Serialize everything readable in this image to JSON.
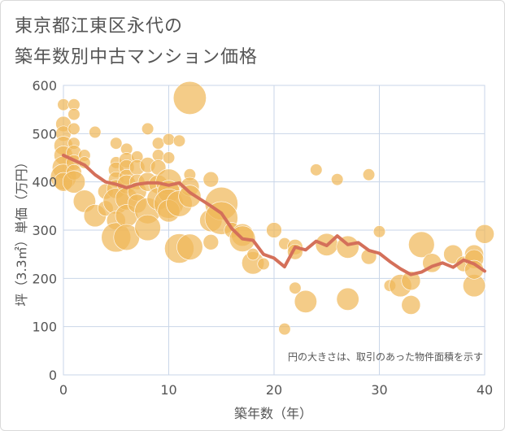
{
  "chart_data": {
    "type": "scatter",
    "title_lines": [
      "東京都江東区永代の",
      "築年数別中古マンション価格"
    ],
    "xlabel": "築年数（年）",
    "ylabel": "坪（3.3㎡）単価（万円）",
    "note": "円の大きさは、取引のあった物件面積を示す",
    "xlim": [
      0,
      40
    ],
    "ylim": [
      0,
      600
    ],
    "x_ticks": [
      0,
      10,
      20,
      30,
      40
    ],
    "y_ticks": [
      0,
      100,
      200,
      300,
      400,
      500,
      600
    ],
    "grid": true,
    "colors": {
      "bubble": "#f0b95a",
      "line": "#d4705a",
      "grid": "#c9d6e8",
      "axis_text": "#555555"
    },
    "trend_line": {
      "x": [
        0,
        1,
        2,
        3,
        4,
        5,
        6,
        7,
        8,
        9,
        10,
        11,
        12,
        13,
        14,
        15,
        16,
        17,
        18,
        19,
        20,
        21,
        22,
        23,
        24,
        25,
        26,
        27,
        28,
        29,
        30,
        31,
        32,
        33,
        34,
        35,
        36,
        37,
        38,
        39,
        40
      ],
      "y": [
        455,
        445,
        435,
        415,
        400,
        395,
        388,
        395,
        398,
        398,
        393,
        398,
        378,
        364,
        350,
        335,
        303,
        282,
        279,
        250,
        242,
        224,
        265,
        259,
        277,
        268,
        288,
        270,
        274,
        258,
        252,
        235,
        220,
        208,
        213,
        225,
        232,
        223,
        238,
        230,
        215
      ]
    },
    "bubbles": [
      {
        "x": 0,
        "y": 560,
        "s": 2
      },
      {
        "x": 0,
        "y": 520,
        "s": 3
      },
      {
        "x": 0,
        "y": 500,
        "s": 3
      },
      {
        "x": 0,
        "y": 475,
        "s": 4
      },
      {
        "x": 0,
        "y": 455,
        "s": 4
      },
      {
        "x": 0,
        "y": 430,
        "s": 5
      },
      {
        "x": 0,
        "y": 410,
        "s": 6
      },
      {
        "x": 0,
        "y": 400,
        "s": 4
      },
      {
        "x": 1,
        "y": 560,
        "s": 2
      },
      {
        "x": 1,
        "y": 540,
        "s": 2
      },
      {
        "x": 1,
        "y": 510,
        "s": 2
      },
      {
        "x": 1,
        "y": 480,
        "s": 2
      },
      {
        "x": 1,
        "y": 460,
        "s": 3
      },
      {
        "x": 1,
        "y": 440,
        "s": 3
      },
      {
        "x": 1,
        "y": 420,
        "s": 3
      },
      {
        "x": 1,
        "y": 400,
        "s": 5
      },
      {
        "x": 2,
        "y": 455,
        "s": 2
      },
      {
        "x": 2,
        "y": 440,
        "s": 2
      },
      {
        "x": 2,
        "y": 360,
        "s": 5
      },
      {
        "x": 3,
        "y": 503,
        "s": 2
      },
      {
        "x": 3,
        "y": 330,
        "s": 5
      },
      {
        "x": 4,
        "y": 380,
        "s": 3
      },
      {
        "x": 4,
        "y": 345,
        "s": 3
      },
      {
        "x": 5,
        "y": 480,
        "s": 2
      },
      {
        "x": 5,
        "y": 440,
        "s": 2
      },
      {
        "x": 5,
        "y": 425,
        "s": 3
      },
      {
        "x": 5,
        "y": 405,
        "s": 3
      },
      {
        "x": 5,
        "y": 385,
        "s": 4
      },
      {
        "x": 5,
        "y": 360,
        "s": 6
      },
      {
        "x": 5,
        "y": 320,
        "s": 4
      },
      {
        "x": 5,
        "y": 285,
        "s": 7
      },
      {
        "x": 6,
        "y": 468,
        "s": 2
      },
      {
        "x": 6,
        "y": 445,
        "s": 3
      },
      {
        "x": 6,
        "y": 430,
        "s": 3
      },
      {
        "x": 6,
        "y": 410,
        "s": 3
      },
      {
        "x": 6,
        "y": 395,
        "s": 4
      },
      {
        "x": 6,
        "y": 365,
        "s": 5
      },
      {
        "x": 6,
        "y": 330,
        "s": 5
      },
      {
        "x": 6,
        "y": 285,
        "s": 6
      },
      {
        "x": 7,
        "y": 452,
        "s": 2
      },
      {
        "x": 7,
        "y": 430,
        "s": 3
      },
      {
        "x": 7,
        "y": 400,
        "s": 3
      },
      {
        "x": 7,
        "y": 380,
        "s": 4
      },
      {
        "x": 7,
        "y": 355,
        "s": 4
      },
      {
        "x": 8,
        "y": 510,
        "s": 2
      },
      {
        "x": 8,
        "y": 435,
        "s": 3
      },
      {
        "x": 8,
        "y": 400,
        "s": 4
      },
      {
        "x": 8,
        "y": 340,
        "s": 6
      },
      {
        "x": 8,
        "y": 305,
        "s": 6
      },
      {
        "x": 9,
        "y": 480,
        "s": 2
      },
      {
        "x": 9,
        "y": 455,
        "s": 2
      },
      {
        "x": 9,
        "y": 430,
        "s": 3
      },
      {
        "x": 9,
        "y": 395,
        "s": 4
      },
      {
        "x": 9,
        "y": 365,
        "s": 5
      },
      {
        "x": 10,
        "y": 488,
        "s": 2
      },
      {
        "x": 10,
        "y": 450,
        "s": 2
      },
      {
        "x": 10,
        "y": 400,
        "s": 6
      },
      {
        "x": 10,
        "y": 380,
        "s": 5
      },
      {
        "x": 10,
        "y": 355,
        "s": 7
      },
      {
        "x": 10,
        "y": 340,
        "s": 5
      },
      {
        "x": 11,
        "y": 485,
        "s": 2
      },
      {
        "x": 11,
        "y": 355,
        "s": 6
      },
      {
        "x": 11,
        "y": 262,
        "s": 7
      },
      {
        "x": 12,
        "y": 574,
        "s": 8
      },
      {
        "x": 12,
        "y": 415,
        "s": 2
      },
      {
        "x": 12,
        "y": 390,
        "s": 4
      },
      {
        "x": 12,
        "y": 370,
        "s": 5
      },
      {
        "x": 12,
        "y": 265,
        "s": 6
      },
      {
        "x": 14,
        "y": 405,
        "s": 3
      },
      {
        "x": 14,
        "y": 320,
        "s": 5
      },
      {
        "x": 14,
        "y": 275,
        "s": 3
      },
      {
        "x": 15,
        "y": 355,
        "s": 8
      },
      {
        "x": 15,
        "y": 325,
        "s": 8
      },
      {
        "x": 16,
        "y": 300,
        "s": 3
      },
      {
        "x": 17,
        "y": 290,
        "s": 5
      },
      {
        "x": 17,
        "y": 282,
        "s": 6
      },
      {
        "x": 18,
        "y": 232,
        "s": 5
      },
      {
        "x": 18,
        "y": 250,
        "s": 2
      },
      {
        "x": 19,
        "y": 230,
        "s": 2
      },
      {
        "x": 20,
        "y": 300,
        "s": 3
      },
      {
        "x": 21,
        "y": 95,
        "s": 2
      },
      {
        "x": 21,
        "y": 272,
        "s": 2
      },
      {
        "x": 22,
        "y": 180,
        "s": 2
      },
      {
        "x": 22,
        "y": 265,
        "s": 3
      },
      {
        "x": 22,
        "y": 255,
        "s": 3
      },
      {
        "x": 23,
        "y": 152,
        "s": 5
      },
      {
        "x": 24,
        "y": 425,
        "s": 2
      },
      {
        "x": 25,
        "y": 270,
        "s": 5
      },
      {
        "x": 26,
        "y": 405,
        "s": 2
      },
      {
        "x": 27,
        "y": 157,
        "s": 5
      },
      {
        "x": 27,
        "y": 265,
        "s": 5
      },
      {
        "x": 29,
        "y": 415,
        "s": 2
      },
      {
        "x": 29,
        "y": 245,
        "s": 3
      },
      {
        "x": 30,
        "y": 297,
        "s": 2
      },
      {
        "x": 31,
        "y": 185,
        "s": 2
      },
      {
        "x": 32,
        "y": 185,
        "s": 5
      },
      {
        "x": 33,
        "y": 195,
        "s": 4
      },
      {
        "x": 33,
        "y": 145,
        "s": 4
      },
      {
        "x": 34,
        "y": 270,
        "s": 6
      },
      {
        "x": 35,
        "y": 232,
        "s": 4
      },
      {
        "x": 37,
        "y": 250,
        "s": 4
      },
      {
        "x": 38,
        "y": 230,
        "s": 3
      },
      {
        "x": 39,
        "y": 250,
        "s": 4
      },
      {
        "x": 39,
        "y": 240,
        "s": 4
      },
      {
        "x": 39,
        "y": 185,
        "s": 5
      },
      {
        "x": 39,
        "y": 218,
        "s": 4
      },
      {
        "x": 40,
        "y": 292,
        "s": 4
      }
    ]
  }
}
